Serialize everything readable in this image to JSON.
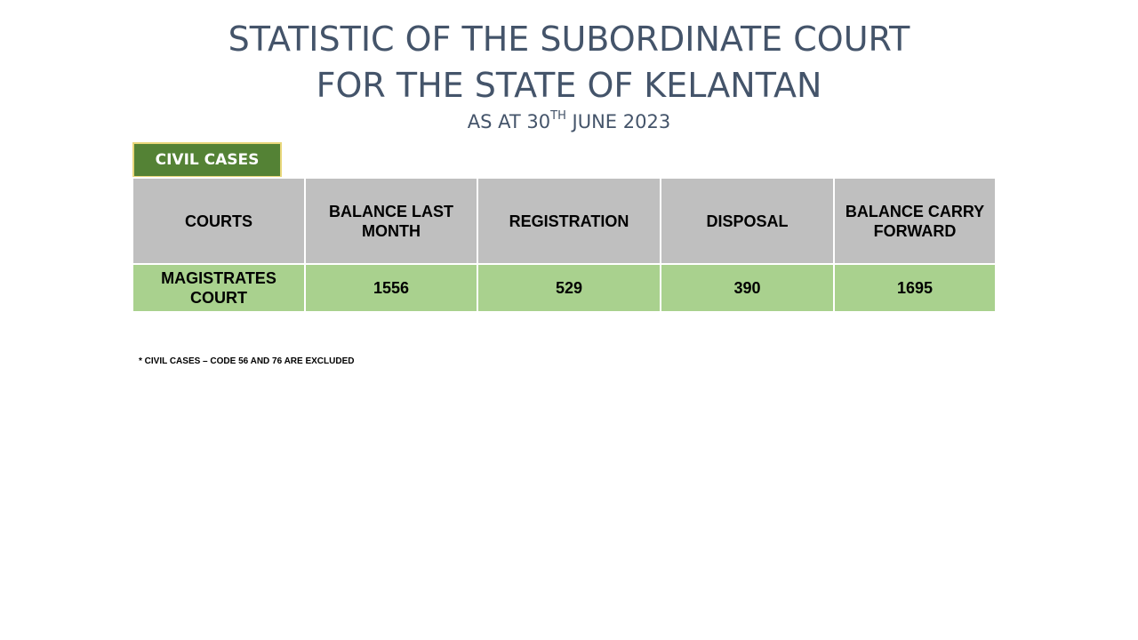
{
  "title": {
    "line1": "STATISTIC OF THE SUBORDINATE COURT",
    "line2": "FOR THE STATE OF KELANTAN",
    "date_prefix": "AS AT 30",
    "date_sup": "TH",
    "date_suffix": " JUNE 2023"
  },
  "section_badge": "CIVIL CASES",
  "table": {
    "headers": [
      "COURTS",
      "BALANCE LAST MONTH",
      "REGISTRATION",
      "DISPOSAL",
      "BALANCE CARRY FORWARD"
    ],
    "rows": [
      [
        "MAGISTRATES COURT",
        "1556",
        "529",
        "390",
        "1695"
      ]
    ]
  },
  "footnote": "* CIVIL CASES – CODE 56 AND 76 ARE EXCLUDED",
  "colors": {
    "title": "#44546a",
    "badge_bg": "#548235",
    "badge_border": "#e8d77b",
    "header_bg": "#bfbfbf",
    "row_bg": "#a9d18e"
  }
}
